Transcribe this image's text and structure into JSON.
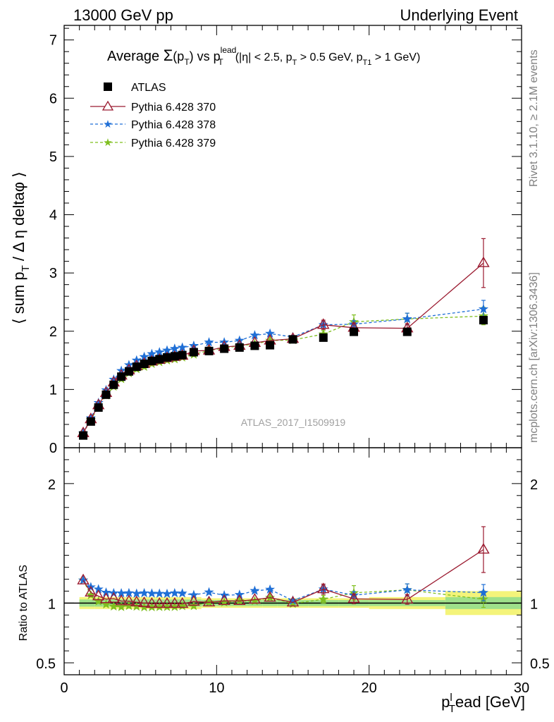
{
  "header": {
    "left": "13000 GeV pp",
    "right": "Underlying Event"
  },
  "side": {
    "rivet": "Rivet 3.1.10, ≥ 2.1M events",
    "mcplots": "mcplots.cern.ch [arXiv:1306.3436]"
  },
  "top_panel": {
    "title": "Average Σ(pT) vs pT^lead (|η| < 2.5, pT > 0.5 GeV, pT1 > 1 GeV)",
    "ylabel": "⟨ sum pT / Δη deltaφ ⟩",
    "watermark": "ATLAS_2017_I1509919",
    "yticks": [
      "0",
      "1",
      "2",
      "3",
      "4",
      "5",
      "6",
      "7"
    ]
  },
  "ratio_panel": {
    "ylabel": "Ratio to ATLAS",
    "yticks_left": [
      "0.5",
      "1",
      "2"
    ],
    "yticks_right": [
      "0.5",
      "1",
      "2"
    ]
  },
  "xaxis": {
    "label": "pT^lead [GeV]",
    "ticks": [
      "0",
      "10",
      "20",
      "30"
    ]
  },
  "legend": [
    {
      "label": "ATLAS",
      "color": "#000000",
      "marker": "square"
    },
    {
      "label": "Pythia 6.428 370",
      "color": "#9b1b30",
      "marker": "triangle"
    },
    {
      "label": "Pythia 6.428 378",
      "color": "#1f6fd6",
      "marker": "star"
    },
    {
      "label": "Pythia 6.428 379",
      "color": "#7fbf1f",
      "marker": "star"
    }
  ],
  "chart_data": {
    "type": "scatter",
    "x": [
      1.25,
      1.75,
      2.25,
      2.75,
      3.25,
      3.75,
      4.25,
      4.75,
      5.25,
      5.75,
      6.25,
      6.75,
      7.25,
      7.75,
      8.5,
      9.5,
      10.5,
      11.5,
      12.5,
      13.5,
      15,
      17,
      19,
      22.5,
      27.5
    ],
    "xlim": [
      0,
      30
    ],
    "ylim": [
      0,
      7.25
    ],
    "ratio_ylim": [
      0.4,
      2.3
    ],
    "series": [
      {
        "name": "ATLAS",
        "values": [
          0.21,
          0.45,
          0.69,
          0.91,
          1.08,
          1.22,
          1.31,
          1.39,
          1.44,
          1.49,
          1.52,
          1.55,
          1.57,
          1.59,
          1.64,
          1.66,
          1.7,
          1.72,
          1.75,
          1.76,
          1.86,
          1.89,
          1.99,
          1.99,
          2.19
        ]
      },
      {
        "name": "Pythia 6.428 370",
        "values": [
          0.25,
          0.49,
          0.73,
          0.94,
          1.12,
          1.24,
          1.33,
          1.4,
          1.44,
          1.48,
          1.51,
          1.54,
          1.56,
          1.58,
          1.66,
          1.67,
          1.73,
          1.75,
          1.8,
          1.84,
          1.87,
          2.11,
          2.06,
          2.05,
          3.17
        ]
      },
      {
        "name": "Pythia 6.428 378",
        "values": [
          0.25,
          0.51,
          0.77,
          0.99,
          1.17,
          1.32,
          1.42,
          1.5,
          1.56,
          1.61,
          1.64,
          1.67,
          1.7,
          1.72,
          1.75,
          1.81,
          1.81,
          1.84,
          1.93,
          1.96,
          1.9,
          2.11,
          2.12,
          2.21,
          2.38
        ]
      },
      {
        "name": "Pythia 6.428 379",
        "values": [
          0.25,
          0.48,
          0.7,
          0.9,
          1.05,
          1.18,
          1.28,
          1.35,
          1.39,
          1.44,
          1.47,
          1.5,
          1.52,
          1.55,
          1.6,
          1.67,
          1.71,
          1.75,
          1.78,
          1.84,
          1.85,
          1.95,
          2.16,
          2.21,
          2.26
        ]
      }
    ],
    "errors": {
      "Pythia 6.428 370": [
        0,
        0,
        0,
        0,
        0,
        0,
        0,
        0,
        0,
        0,
        0,
        0,
        0,
        0,
        0,
        0,
        0,
        0,
        0,
        0,
        0,
        0.08,
        0.08,
        0.08,
        0.42
      ],
      "Pythia 6.428 378": [
        0,
        0,
        0,
        0,
        0,
        0,
        0,
        0,
        0,
        0,
        0,
        0,
        0,
        0,
        0,
        0,
        0,
        0,
        0,
        0,
        0,
        0.06,
        0.06,
        0.1,
        0.15
      ],
      "Pythia 6.428 379": [
        0,
        0,
        0,
        0,
        0,
        0,
        0,
        0,
        0,
        0,
        0,
        0,
        0,
        0,
        0,
        0,
        0,
        0,
        0,
        0,
        0,
        0.06,
        0.12,
        0.1,
        0.15
      ]
    },
    "data_band": {
      "x_edges": [
        1.0,
        1.5,
        2.0,
        2.5,
        3.0,
        3.5,
        4.0,
        4.5,
        5.0,
        5.5,
        6.0,
        6.5,
        7.0,
        7.5,
        8.0,
        9.0,
        10.0,
        11.0,
        12.0,
        13.0,
        14.0,
        16.0,
        18.0,
        20.0,
        25.0,
        30.0
      ],
      "stat_frac": [
        0.03,
        0.03,
        0.03,
        0.03,
        0.03,
        0.03,
        0.03,
        0.03,
        0.03,
        0.03,
        0.03,
        0.03,
        0.03,
        0.03,
        0.03,
        0.025,
        0.025,
        0.025,
        0.025,
        0.025,
        0.025,
        0.025,
        0.025,
        0.025,
        0.05
      ],
      "total_frac": [
        0.05,
        0.05,
        0.05,
        0.05,
        0.05,
        0.05,
        0.05,
        0.05,
        0.05,
        0.05,
        0.05,
        0.05,
        0.05,
        0.05,
        0.05,
        0.04,
        0.04,
        0.04,
        0.04,
        0.04,
        0.04,
        0.04,
        0.04,
        0.05,
        0.1
      ]
    }
  }
}
